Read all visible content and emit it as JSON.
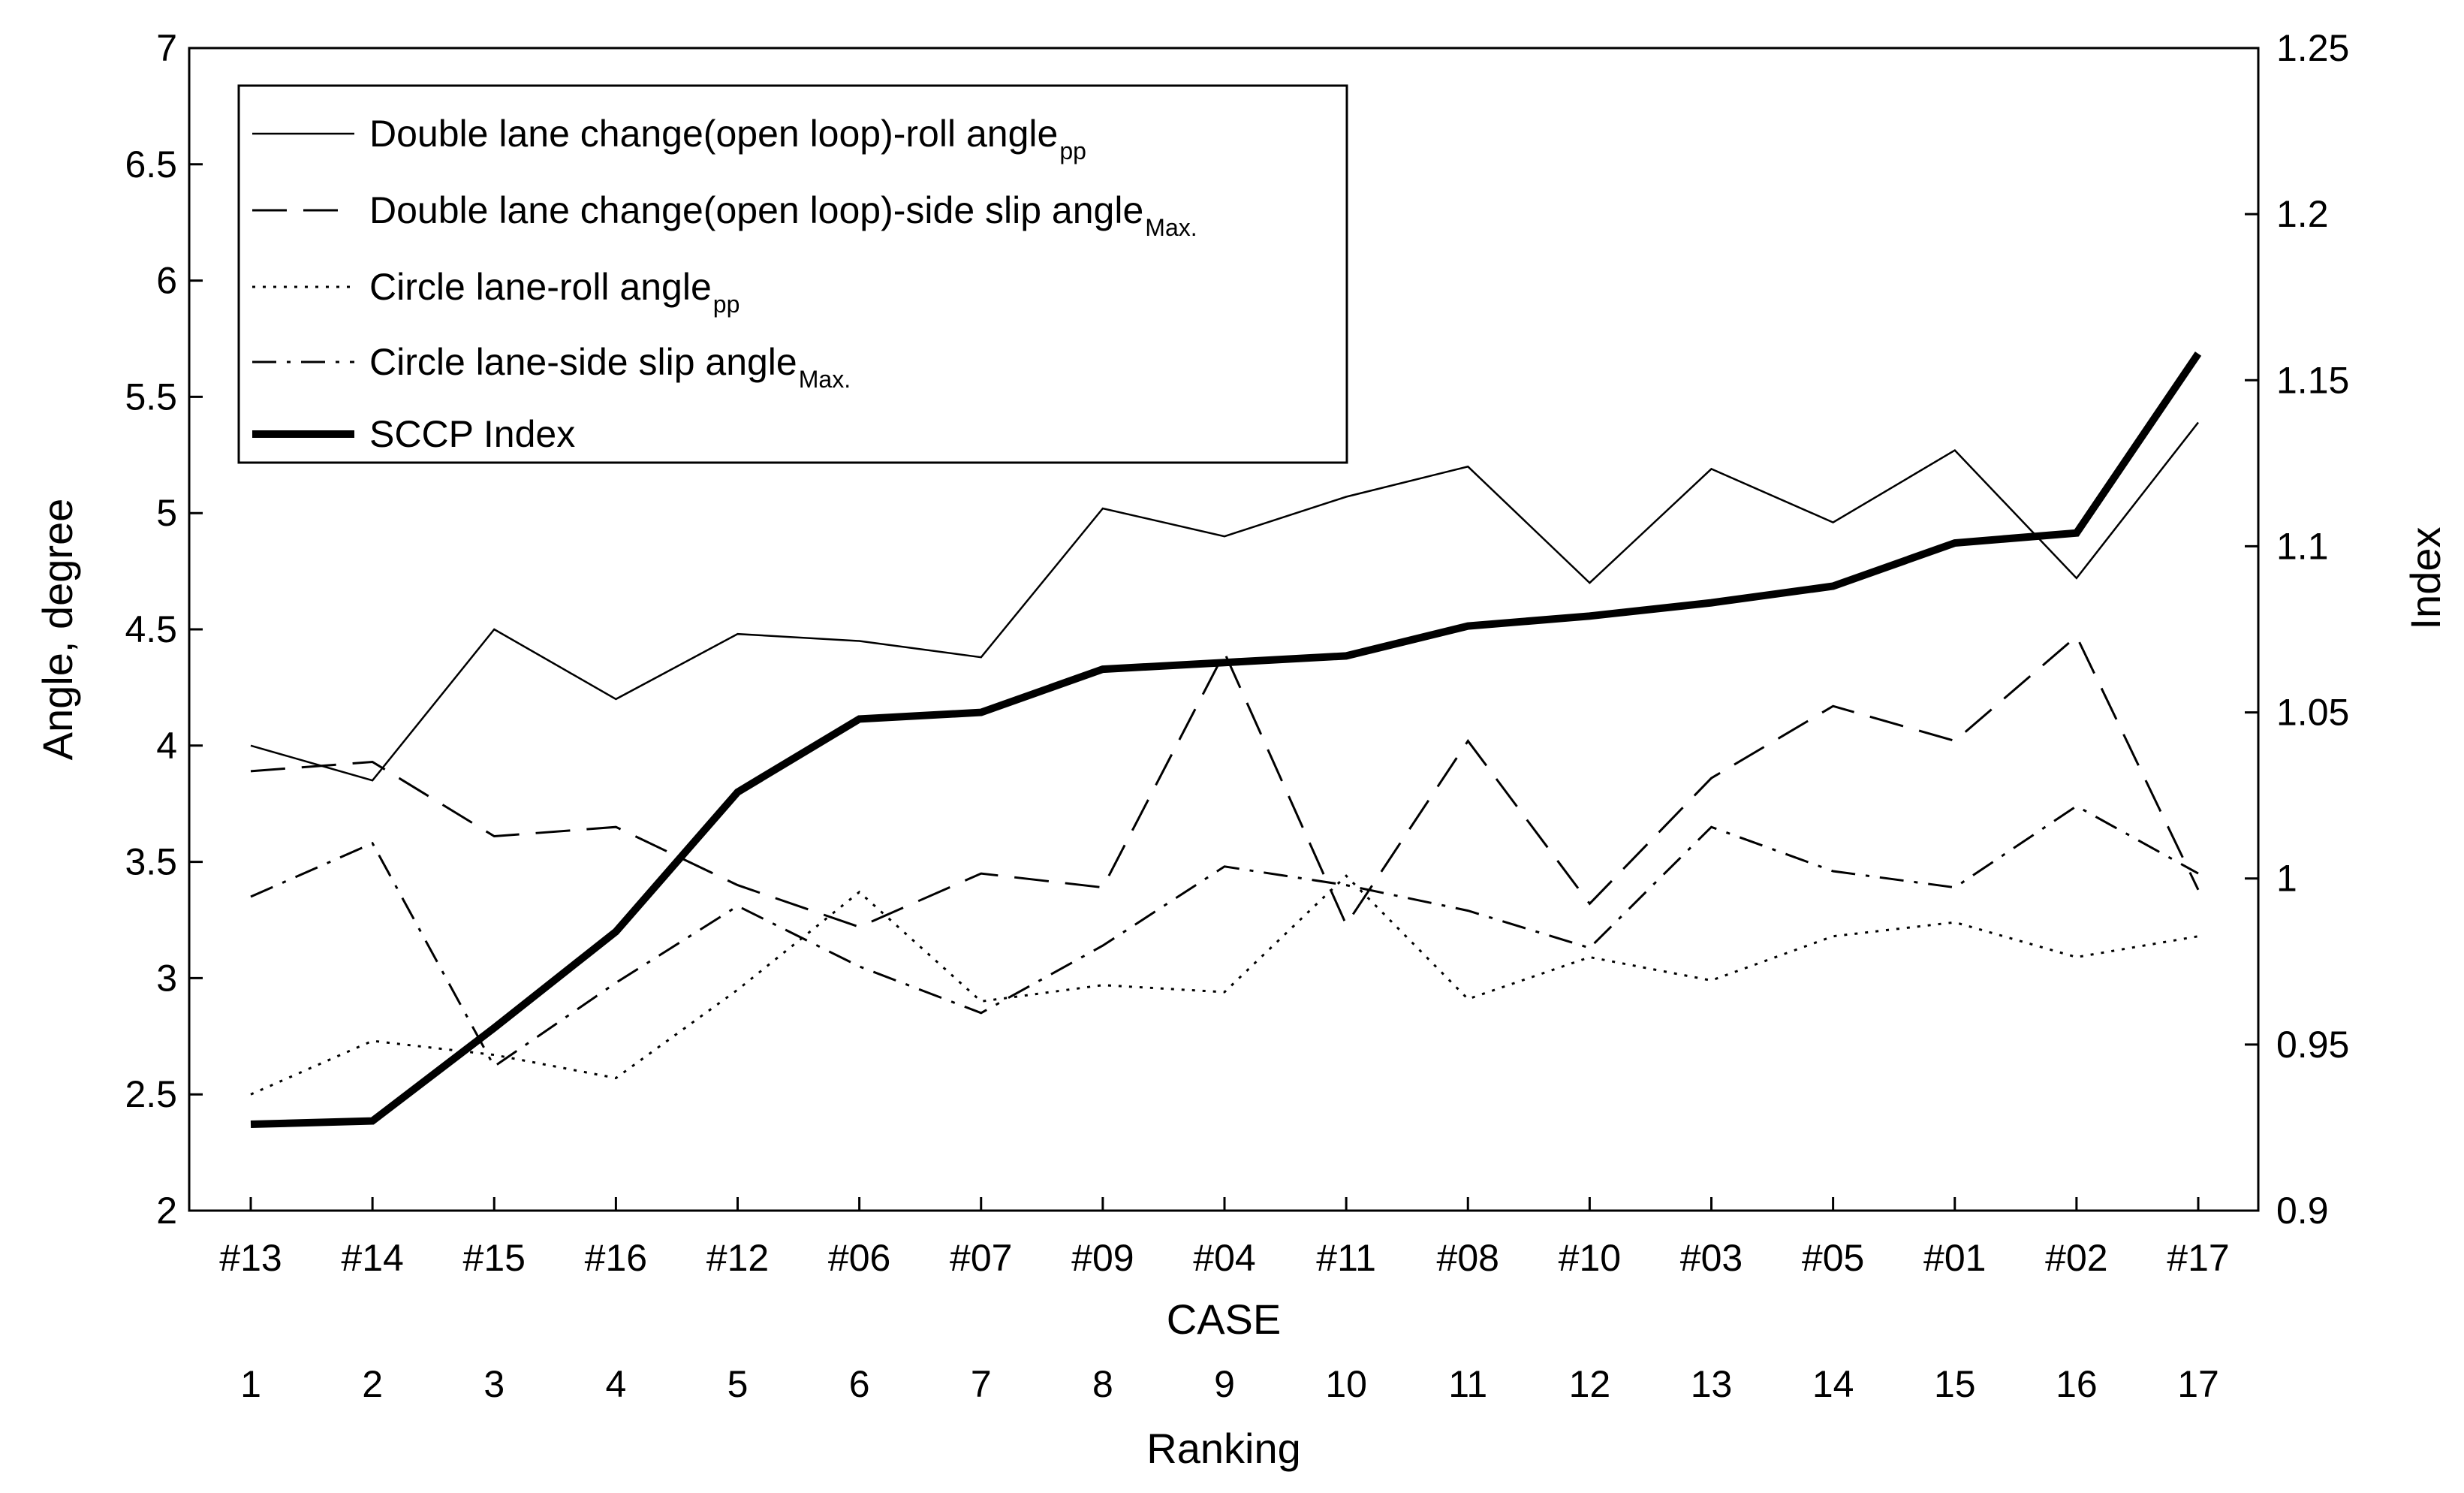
{
  "chart_data": {
    "type": "line",
    "title": "",
    "categories": [
      "#13",
      "#14",
      "#15",
      "#16",
      "#12",
      "#06",
      "#07",
      "#09",
      "#04",
      "#11",
      "#08",
      "#10",
      "#03",
      "#05",
      "#01",
      "#02",
      "#17"
    ],
    "rankings": [
      "1",
      "2",
      "3",
      "4",
      "5",
      "6",
      "7",
      "8",
      "9",
      "10",
      "11",
      "12",
      "13",
      "14",
      "15",
      "16",
      "17"
    ],
    "xlabel": "CASE",
    "xlabel2": "Ranking",
    "ylabel": "Angle, degree",
    "ylabel_right": "Index",
    "ylim": [
      2,
      7
    ],
    "ylim_right": [
      0.9,
      1.25
    ],
    "yticks": [
      "2",
      "2.5",
      "3",
      "3.5",
      "4",
      "4.5",
      "5",
      "5.5",
      "6",
      "6.5",
      "7"
    ],
    "yticks_right": [
      "0.9",
      "0.95",
      "1",
      "1.05",
      "1.1",
      "1.15",
      "1.2",
      "1.25"
    ],
    "legend_position": "top-left",
    "series": [
      {
        "name": "Double lane change(open loop)-roll angle",
        "sub": "pp",
        "axis": "left",
        "style": "solid-thin",
        "values": [
          4.0,
          3.85,
          4.5,
          4.2,
          4.48,
          4.45,
          4.38,
          5.02,
          4.9,
          5.07,
          5.2,
          4.7,
          5.19,
          4.96,
          5.27,
          4.72,
          5.39
        ]
      },
      {
        "name": "Double lane change(open loop)-side slip angle",
        "sub": "Max.",
        "axis": "left",
        "style": "dashed",
        "values": [
          3.89,
          3.93,
          3.61,
          3.65,
          3.4,
          3.22,
          3.45,
          3.39,
          4.4,
          3.23,
          4.02,
          3.32,
          3.86,
          4.17,
          4.02,
          4.47,
          3.38
        ]
      },
      {
        "name": "Circle lane-roll angle",
        "sub": "pp",
        "axis": "left",
        "style": "dotted",
        "values": [
          2.5,
          2.73,
          2.67,
          2.57,
          2.95,
          3.37,
          2.9,
          2.97,
          2.94,
          3.44,
          2.91,
          3.09,
          2.99,
          3.18,
          3.24,
          3.09,
          3.18
        ]
      },
      {
        "name": "Circle lane-side slip angle",
        "sub": "Max.",
        "axis": "left",
        "style": "dashdot",
        "values": [
          3.35,
          3.58,
          2.62,
          2.98,
          3.31,
          3.05,
          2.85,
          3.14,
          3.48,
          3.4,
          3.29,
          3.13,
          3.65,
          3.46,
          3.39,
          3.74,
          3.45
        ]
      },
      {
        "name": "SCCP Index",
        "sub": "",
        "axis": "right",
        "style": "solid-thick",
        "values": [
          0.926,
          0.927,
          0.955,
          0.984,
          1.026,
          1.048,
          1.05,
          1.063,
          1.065,
          1.067,
          1.076,
          1.079,
          1.083,
          1.088,
          1.101,
          1.104,
          1.158
        ]
      }
    ]
  }
}
